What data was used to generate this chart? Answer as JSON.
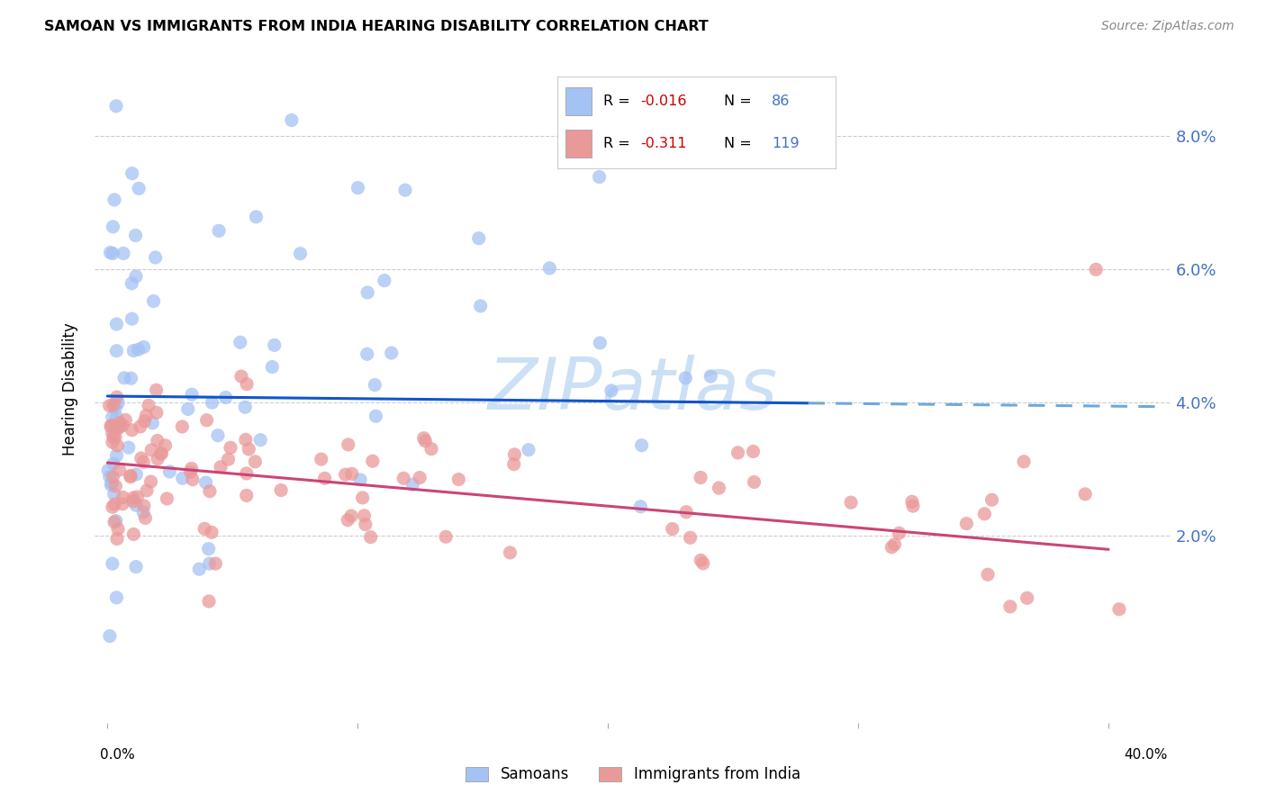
{
  "title": "SAMOAN VS IMMIGRANTS FROM INDIA HEARING DISABILITY CORRELATION CHART",
  "source": "Source: ZipAtlas.com",
  "ylabel": "Hearing Disability",
  "color_samoan": "#a4c2f4",
  "color_india": "#ea9999",
  "color_samoan_line": "#1155cc",
  "color_india_line": "#cc4477",
  "color_dashed_line": "#6fa8dc",
  "watermark_color": "#cce0f5",
  "grid_color": "#cccccc",
  "ytick_color": "#4472c4",
  "legend_R_color": "#cc0000",
  "legend_N_color": "#4472c4",
  "xlim": [
    0.0,
    0.4
  ],
  "ylim": [
    0.0,
    0.088
  ],
  "yticks": [
    0.02,
    0.04,
    0.06,
    0.08
  ],
  "ytick_labels": [
    "2.0%",
    "4.0%",
    "6.0%",
    "8.0%"
  ],
  "samoan_R": "-0.016",
  "samoan_N": "86",
  "india_R": "-0.311",
  "india_N": "119",
  "samoan_trend_x0": 0.0,
  "samoan_trend_y0": 0.041,
  "samoan_trend_x1": 0.4,
  "samoan_trend_y1": 0.0395,
  "india_trend_x0": 0.0,
  "india_trend_y0": 0.031,
  "india_trend_x1": 0.4,
  "india_trend_y1": 0.018
}
